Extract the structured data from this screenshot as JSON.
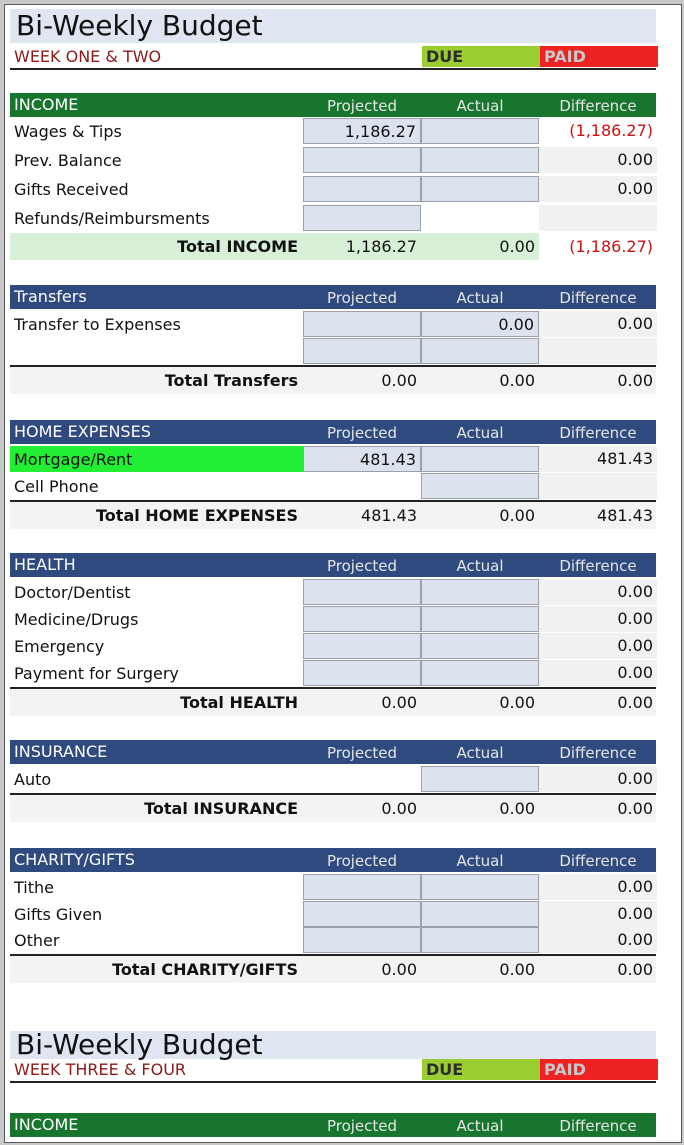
{
  "title": "Bi-Weekly Budget",
  "week_one": {
    "label": "WEEK ONE & TWO",
    "due": "DUE",
    "paid": "PAID"
  },
  "week_two": {
    "label": "WEEK THREE & FOUR",
    "due": "DUE",
    "paid": "PAID"
  },
  "columns": {
    "projected": "Projected",
    "actual": "Actual",
    "difference": "Difference"
  },
  "income": {
    "name": "INCOME",
    "rows": [
      {
        "label": "Wages & Tips",
        "projected": "1,186.27",
        "actual": "",
        "difference": "(1,186.27)"
      },
      {
        "label": "Prev. Balance",
        "projected": "",
        "actual": "",
        "difference": "0.00"
      },
      {
        "label": "Gifts Received",
        "projected": "",
        "actual": "",
        "difference": "0.00"
      },
      {
        "label": "Refunds/Reimbursments",
        "projected": "",
        "actual": "",
        "difference": ""
      }
    ],
    "total": {
      "label": "Total INCOME",
      "projected": "1,186.27",
      "actual": "0.00",
      "difference": "(1,186.27)"
    }
  },
  "transfers": {
    "name": "Transfers",
    "rows": [
      {
        "label": "Transfer to Expenses",
        "projected": "",
        "actual": "0.00",
        "difference": "0.00"
      },
      {
        "label": "",
        "projected": "",
        "actual": "",
        "difference": ""
      }
    ],
    "total": {
      "label": "Total Transfers",
      "projected": "0.00",
      "actual": "0.00",
      "difference": "0.00"
    }
  },
  "home": {
    "name": "HOME EXPENSES",
    "rows": [
      {
        "label": "Mortgage/Rent",
        "projected": "481.43",
        "actual": "",
        "difference": "481.43"
      },
      {
        "label": "Cell Phone",
        "projected": "",
        "actual": "",
        "difference": ""
      }
    ],
    "total": {
      "label": "Total HOME EXPENSES",
      "projected": "481.43",
      "actual": "0.00",
      "difference": "481.43"
    }
  },
  "health": {
    "name": "HEALTH",
    "rows": [
      {
        "label": "Doctor/Dentist",
        "projected": "",
        "actual": "",
        "difference": "0.00"
      },
      {
        "label": "Medicine/Drugs",
        "projected": "",
        "actual": "",
        "difference": "0.00"
      },
      {
        "label": "Emergency",
        "projected": "",
        "actual": "",
        "difference": "0.00"
      },
      {
        "label": "Payment for Surgery",
        "projected": "",
        "actual": "",
        "difference": "0.00"
      }
    ],
    "total": {
      "label": "Total HEALTH",
      "projected": "0.00",
      "actual": "0.00",
      "difference": "0.00"
    }
  },
  "insurance": {
    "name": "INSURANCE",
    "rows": [
      {
        "label": "Auto",
        "projected": "",
        "actual": "",
        "difference": "0.00"
      }
    ],
    "total": {
      "label": "Total INSURANCE",
      "projected": "0.00",
      "actual": "0.00",
      "difference": "0.00"
    }
  },
  "charity": {
    "name": "CHARITY/GIFTS",
    "rows": [
      {
        "label": "Tithe",
        "projected": "",
        "actual": "",
        "difference": "0.00"
      },
      {
        "label": "Gifts Given",
        "projected": "",
        "actual": "",
        "difference": "0.00"
      },
      {
        "label": "Other",
        "projected": "",
        "actual": "",
        "difference": "0.00"
      }
    ],
    "total": {
      "label": "Total CHARITY/GIFTS",
      "projected": "0.00",
      "actual": "0.00",
      "difference": "0.00"
    }
  },
  "income2": {
    "name": "INCOME"
  },
  "colors": {
    "income_header": "#17752e",
    "section_header": "#2e4a7f",
    "due": "#9acd32",
    "paid": "#ee2222",
    "negative": "#cc1111",
    "highlight": "#22ee33"
  }
}
